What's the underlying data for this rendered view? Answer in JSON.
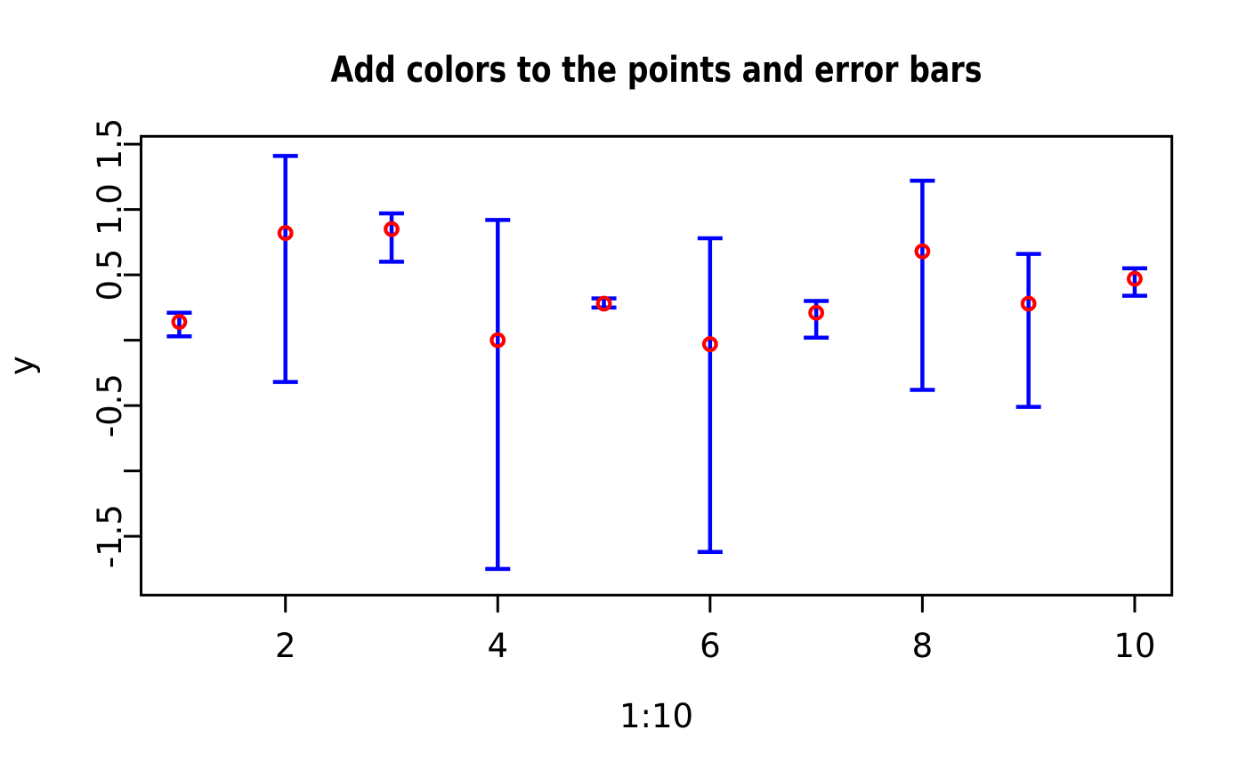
{
  "chart_data": {
    "type": "scatter",
    "title": "Add colors to the points and error bars",
    "xlabel": "1:10",
    "ylabel": "y",
    "x": [
      1,
      2,
      3,
      4,
      5,
      6,
      7,
      8,
      9,
      10
    ],
    "series": [
      {
        "name": "y",
        "values": [
          0.14,
          0.82,
          0.85,
          0.0,
          0.28,
          -0.03,
          0.21,
          0.68,
          0.28,
          0.47
        ]
      }
    ],
    "error_low": [
      0.03,
      -0.32,
      0.6,
      -1.75,
      0.25,
      -1.62,
      0.02,
      -0.38,
      -0.51,
      0.34
    ],
    "error_high": [
      0.21,
      1.41,
      0.97,
      0.92,
      0.32,
      0.78,
      0.3,
      1.22,
      0.66,
      0.55
    ],
    "xlim": [
      0.64,
      10.35
    ],
    "ylim": [
      -1.95,
      1.56
    ],
    "xticks": [
      2,
      4,
      6,
      8,
      10
    ],
    "xtick_labels": [
      "2",
      "4",
      "6",
      "8",
      "10"
    ],
    "yticks": [
      1.5,
      1.0,
      0.5,
      0.0,
      -0.5,
      -1.0,
      -1.5
    ],
    "ytick_labels": [
      "1.5",
      "1.0",
      "0.5",
      "",
      "-0.5",
      "",
      "-1.5"
    ],
    "grid": false,
    "legend": "none",
    "point_color": "#ff0000",
    "errorbar_color": "#0000ff",
    "axis_color": "#000000",
    "background_color": "#ffffff"
  }
}
